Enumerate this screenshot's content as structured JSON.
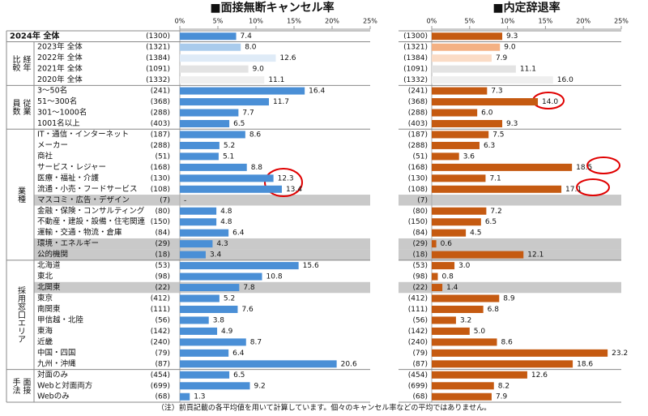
{
  "chart_data": {
    "type": "bar",
    "orientation": "horizontal",
    "xlim": [
      0,
      25
    ],
    "xticks": [
      {
        "value": 0,
        "label": "0%"
      },
      {
        "value": 5,
        "label": "5%"
      },
      {
        "value": 10,
        "label": "10%"
      },
      {
        "value": 15,
        "label": "15%"
      },
      {
        "value": 20,
        "label": "20%"
      },
      {
        "value": 25,
        "label": "25%"
      }
    ],
    "groups": [
      {
        "name": null,
        "categories": [
          "2024年 全体"
        ],
        "counts": [
          "(1300)"
        ]
      },
      {
        "name": "経年比較",
        "categories": [
          "2023年 全体",
          "2022年 全体",
          "2021年 全体",
          "2020年 全体"
        ],
        "counts": [
          "(1321)",
          "(1384)",
          "(1091)",
          "(1332)"
        ]
      },
      {
        "name": "従業員数",
        "categories": [
          "3～50名",
          "51～300名",
          "301～1000名",
          "1001名以上"
        ],
        "counts": [
          "(241)",
          "(368)",
          "(288)",
          "(403)"
        ]
      },
      {
        "name": "業種",
        "categories": [
          "IT・通信・インターネット",
          "メーカー",
          "商社",
          "サービス・レジャー",
          "医療・福祉・介護",
          "流通・小売・フードサービス",
          "マスコミ・広告・デザイン",
          "金融・保険・コンサルティング",
          "不動産・建設・設備・住宅関連",
          "運輸・交通・物流・倉庫",
          "環境・エネルギー",
          "公的機関"
        ],
        "counts": [
          "(187)",
          "(288)",
          "(51)",
          "(168)",
          "(130)",
          "(108)",
          "(7)",
          "(80)",
          "(150)",
          "(84)",
          "(29)",
          "(18)"
        ]
      },
      {
        "name": "採用窓口エリア",
        "categories": [
          "北海道",
          "東北",
          "北関東",
          "東京",
          "南関東",
          "甲信越・北陸",
          "東海",
          "近畿",
          "中国・四国",
          "九州・沖縄"
        ],
        "counts": [
          "(53)",
          "(98)",
          "(22)",
          "(412)",
          "(111)",
          "(56)",
          "(142)",
          "(240)",
          "(79)",
          "(87)"
        ]
      },
      {
        "name": "面接手法",
        "categories": [
          "対面のみ",
          "Webと対面両方",
          "Webのみ"
        ],
        "counts": [
          "(454)",
          "(699)",
          "(68)"
        ]
      }
    ],
    "highlighted": [
      "マスコミ・広告・デザイン",
      "環境・エネルギー",
      "公的機関",
      "北関東"
    ],
    "series": [
      {
        "name": "■面接無断キャンセル率",
        "values": [
          7.4,
          8.0,
          12.6,
          9.0,
          11.1,
          16.4,
          11.7,
          7.7,
          6.5,
          8.6,
          5.2,
          5.1,
          8.8,
          12.3,
          13.4,
          null,
          4.8,
          4.8,
          6.4,
          4.3,
          3.4,
          15.6,
          10.8,
          7.8,
          5.2,
          7.6,
          3.8,
          4.9,
          8.7,
          6.4,
          20.6,
          6.5,
          9.2,
          1.3
        ],
        "value_labels": [
          "7.4",
          "8.0",
          "12.6",
          "9.0",
          "11.1",
          "16.4",
          "11.7",
          "7.7",
          "6.5",
          "8.6",
          "5.2",
          "5.1",
          "8.8",
          "12.3",
          "13.4",
          "-",
          "4.8",
          "4.8",
          "6.4",
          "4.3",
          "3.4",
          "15.6",
          "10.8",
          "7.8",
          "5.2",
          "7.6",
          "3.8",
          "4.9",
          "8.7",
          "6.4",
          "20.6",
          "6.5",
          "9.2",
          "1.3"
        ],
        "colors": [
          "#4a8fd6",
          "#a9cbec",
          "#dfebf7",
          "#e3e3e3",
          "#efefef",
          "#4a8fd6",
          "#4a8fd6",
          "#4a8fd6",
          "#4a8fd6",
          "#4a8fd6",
          "#4a8fd6",
          "#4a8fd6",
          "#4a8fd6",
          "#4a8fd6",
          "#4a8fd6",
          "#4a8fd6",
          "#4a8fd6",
          "#4a8fd6",
          "#4a8fd6",
          "#4a8fd6",
          "#4a8fd6",
          "#4a8fd6",
          "#4a8fd6",
          "#4a8fd6",
          "#4a8fd6",
          "#4a8fd6",
          "#4a8fd6",
          "#4a8fd6",
          "#4a8fd6",
          "#4a8fd6",
          "#4a8fd6",
          "#4a8fd6",
          "#4a8fd6",
          "#4a8fd6"
        ]
      },
      {
        "name": "■内定辞退率",
        "values": [
          9.3,
          9.0,
          7.9,
          11.1,
          16.0,
          7.3,
          14.0,
          6.0,
          9.3,
          7.5,
          6.3,
          3.6,
          18.5,
          7.1,
          17.1,
          null,
          7.2,
          6.5,
          4.5,
          0.6,
          12.1,
          3.0,
          0.8,
          1.4,
          8.9,
          6.8,
          3.2,
          5.0,
          8.6,
          23.2,
          18.6,
          12.6,
          8.2,
          7.9
        ],
        "value_labels": [
          "9.3",
          "9.0",
          "7.9",
          "11.1",
          "16.0",
          "7.3",
          "14.0",
          "6.0",
          "9.3",
          "7.5",
          "6.3",
          "3.6",
          "18.5",
          "7.1",
          "17.1",
          null,
          "7.2",
          "6.5",
          "4.5",
          "0.6",
          "12.1",
          "3.0",
          "0.8",
          "1.4",
          "8.9",
          "6.8",
          "3.2",
          "5.0",
          "8.6",
          "23.2",
          "18.6",
          "12.6",
          "8.2",
          "7.9"
        ],
        "colors": [
          "#c55a11",
          "#f4b183",
          "#fbdcc6",
          "#e3e3e3",
          "#efefef",
          "#c55a11",
          "#c55a11",
          "#c55a11",
          "#c55a11",
          "#c55a11",
          "#c55a11",
          "#c55a11",
          "#c55a11",
          "#c55a11",
          "#c55a11",
          "#c55a11",
          "#c55a11",
          "#c55a11",
          "#c55a11",
          "#c55a11",
          "#c55a11",
          "#c55a11",
          "#c55a11",
          "#c55a11",
          "#c55a11",
          "#c55a11",
          "#c55a11",
          "#c55a11",
          "#c55a11",
          "#c55a11",
          "#c55a11",
          "#c55a11",
          "#c55a11",
          "#c55a11"
        ]
      }
    ],
    "note": "（注）前頁記載の各平均値を用いて計算しています。個々のキャンセル率などの平均ではありません。"
  }
}
